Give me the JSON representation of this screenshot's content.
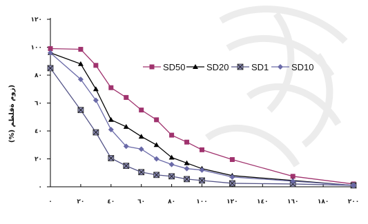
{
  "chart_data": {
    "type": "line",
    "title": "",
    "xlabel": "",
    "ylabel": "(%) زوم ةقلطم)",
    "x": [
      0,
      20,
      30,
      40,
      50,
      60,
      70,
      80,
      90,
      100,
      120,
      160,
      200
    ],
    "x_tick_labels": [
      "٠",
      "٢٠",
      "٤٠",
      "٦٠",
      "٨٠",
      "١٠٠",
      "١٢٠",
      "١٤٠",
      "١٦٠",
      "١٨٠",
      "٢٠٠"
    ],
    "x_ticks": [
      0,
      20,
      40,
      60,
      80,
      100,
      120,
      140,
      160,
      180,
      200
    ],
    "y_tick_labels": [
      "٠",
      "٢٠",
      "٤٠",
      "٦٠",
      "٨٠",
      "١٠٠",
      "١٢٠"
    ],
    "y_ticks": [
      0,
      20,
      40,
      60,
      80,
      100,
      120
    ],
    "xlim": [
      0,
      200
    ],
    "ylim": [
      0,
      120
    ],
    "grid": false,
    "legend_position": "right-inside",
    "series": [
      {
        "name": "SD50",
        "color": "#a0336e",
        "marker": "square",
        "values": [
          99,
          98.5,
          87,
          71,
          64,
          55,
          48,
          37,
          32,
          26.5,
          19.5,
          7.5,
          2
        ]
      },
      {
        "name": "SD20",
        "color": "#000000",
        "marker": "triangle",
        "values": [
          96,
          88,
          70,
          48,
          43,
          36,
          30,
          21,
          17,
          13,
          8,
          4.5,
          1
        ]
      },
      {
        "name": "SD1",
        "color": "#555588",
        "marker": "x-box",
        "values": [
          85,
          55,
          39,
          20.5,
          15,
          10.5,
          8.5,
          7.5,
          5.5,
          4.5,
          2.5,
          2,
          1
        ]
      },
      {
        "name": "SD10",
        "color": "#6a6aa8",
        "marker": "diamond",
        "values": [
          96,
          77,
          62,
          41,
          29,
          27,
          20,
          16,
          13,
          12,
          7,
          4,
          1
        ]
      }
    ]
  }
}
